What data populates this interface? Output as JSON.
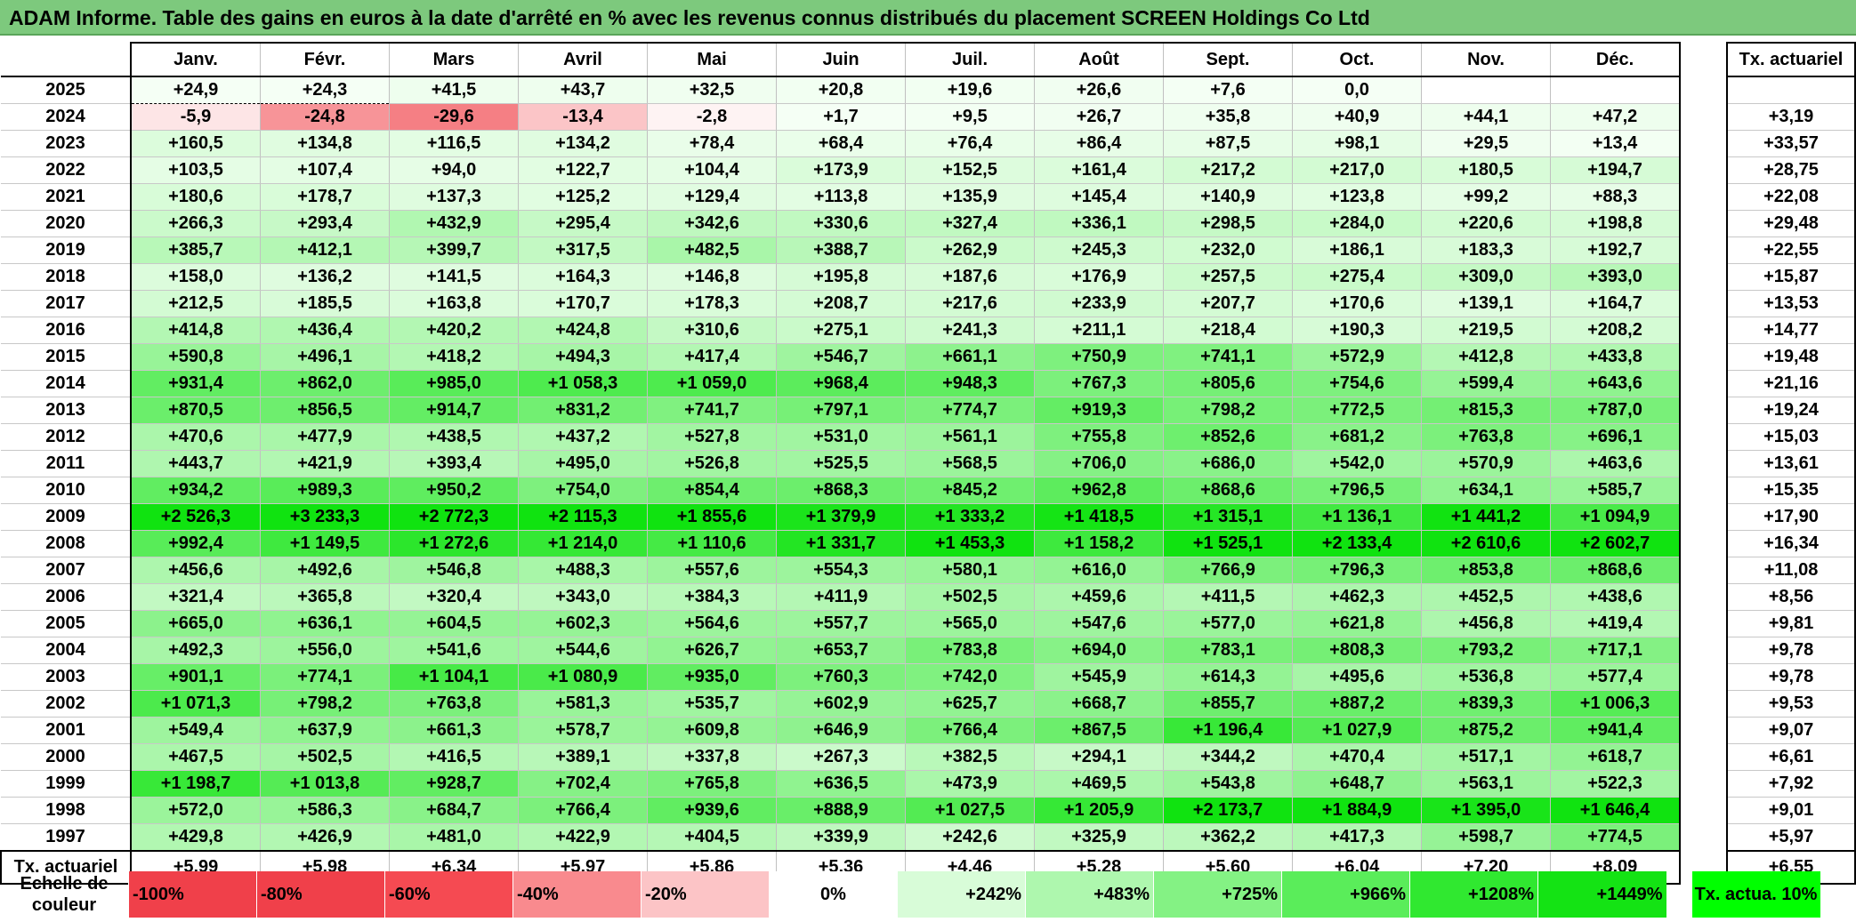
{
  "title": "ADAM Informe. Table des gains en euros à la date d'arrêté en % avec les revenus connus distribués du placement SCREEN Holdings Co Ltd",
  "chart_data": {
    "type": "table",
    "months": [
      "Janv.",
      "Févr.",
      "Mars",
      "Avril",
      "Mai",
      "Juin",
      "Juil.",
      "Août",
      "Sept.",
      "Oct.",
      "Nov.",
      "Déc."
    ],
    "right_header": "Tx. actuariel",
    "rows": [
      {
        "year": "2025",
        "values": [
          "+24,9",
          "+24,3",
          "+41,5",
          "+43,7",
          "+32,5",
          "+20,8",
          "+19,6",
          "+26,6",
          "+7,6",
          "0,0",
          "",
          ""
        ],
        "rate": ""
      },
      {
        "year": "2024",
        "values": [
          "-5,9",
          "-24,8",
          "-29,6",
          "-13,4",
          "-2,8",
          "+1,7",
          "+9,5",
          "+26,7",
          "+35,8",
          "+40,9",
          "+44,1",
          "+47,2"
        ],
        "rate": "+3,19"
      },
      {
        "year": "2023",
        "values": [
          "+160,5",
          "+134,8",
          "+116,5",
          "+134,2",
          "+78,4",
          "+68,4",
          "+76,4",
          "+86,4",
          "+87,5",
          "+98,1",
          "+29,5",
          "+13,4"
        ],
        "rate": "+33,57"
      },
      {
        "year": "2022",
        "values": [
          "+103,5",
          "+107,4",
          "+94,0",
          "+122,7",
          "+104,4",
          "+173,9",
          "+152,5",
          "+161,4",
          "+217,2",
          "+217,0",
          "+180,5",
          "+194,7"
        ],
        "rate": "+28,75"
      },
      {
        "year": "2021",
        "values": [
          "+180,6",
          "+178,7",
          "+137,3",
          "+125,2",
          "+129,4",
          "+113,8",
          "+135,9",
          "+145,4",
          "+140,9",
          "+123,8",
          "+99,2",
          "+88,3"
        ],
        "rate": "+22,08"
      },
      {
        "year": "2020",
        "values": [
          "+266,3",
          "+293,4",
          "+432,9",
          "+295,4",
          "+342,6",
          "+330,6",
          "+327,4",
          "+336,1",
          "+298,5",
          "+284,0",
          "+220,6",
          "+198,8"
        ],
        "rate": "+29,48"
      },
      {
        "year": "2019",
        "values": [
          "+385,7",
          "+412,1",
          "+399,7",
          "+317,5",
          "+482,5",
          "+388,7",
          "+262,9",
          "+245,3",
          "+232,0",
          "+186,1",
          "+183,3",
          "+192,7"
        ],
        "rate": "+22,55"
      },
      {
        "year": "2018",
        "values": [
          "+158,0",
          "+136,2",
          "+141,5",
          "+164,3",
          "+146,8",
          "+195,8",
          "+187,6",
          "+176,9",
          "+257,5",
          "+275,4",
          "+309,0",
          "+393,0"
        ],
        "rate": "+15,87"
      },
      {
        "year": "2017",
        "values": [
          "+212,5",
          "+185,5",
          "+163,8",
          "+170,7",
          "+178,3",
          "+208,7",
          "+217,6",
          "+233,9",
          "+207,7",
          "+170,6",
          "+139,1",
          "+164,7"
        ],
        "rate": "+13,53"
      },
      {
        "year": "2016",
        "values": [
          "+414,8",
          "+436,4",
          "+420,2",
          "+424,8",
          "+310,6",
          "+275,1",
          "+241,3",
          "+211,1",
          "+218,4",
          "+190,3",
          "+219,5",
          "+208,2"
        ],
        "rate": "+14,77"
      },
      {
        "year": "2015",
        "values": [
          "+590,8",
          "+496,1",
          "+418,2",
          "+494,3",
          "+417,4",
          "+546,7",
          "+661,1",
          "+750,9",
          "+741,1",
          "+572,9",
          "+412,8",
          "+433,8"
        ],
        "rate": "+19,48"
      },
      {
        "year": "2014",
        "values": [
          "+931,4",
          "+862,0",
          "+985,0",
          "+1 058,3",
          "+1 059,0",
          "+968,4",
          "+948,3",
          "+767,3",
          "+805,6",
          "+754,6",
          "+599,4",
          "+643,6"
        ],
        "rate": "+21,16"
      },
      {
        "year": "2013",
        "values": [
          "+870,5",
          "+856,5",
          "+914,7",
          "+831,2",
          "+741,7",
          "+797,1",
          "+774,7",
          "+919,3",
          "+798,2",
          "+772,5",
          "+815,3",
          "+787,0"
        ],
        "rate": "+19,24"
      },
      {
        "year": "2012",
        "values": [
          "+470,6",
          "+477,9",
          "+438,5",
          "+437,2",
          "+527,8",
          "+531,0",
          "+561,1",
          "+755,8",
          "+852,6",
          "+681,2",
          "+763,8",
          "+696,1"
        ],
        "rate": "+15,03"
      },
      {
        "year": "2011",
        "values": [
          "+443,7",
          "+421,9",
          "+393,4",
          "+495,0",
          "+526,8",
          "+525,5",
          "+568,5",
          "+706,0",
          "+686,0",
          "+542,0",
          "+570,9",
          "+463,6"
        ],
        "rate": "+13,61"
      },
      {
        "year": "2010",
        "values": [
          "+934,2",
          "+989,3",
          "+950,2",
          "+754,0",
          "+854,4",
          "+868,3",
          "+845,2",
          "+962,8",
          "+868,6",
          "+796,5",
          "+634,1",
          "+585,7"
        ],
        "rate": "+15,35"
      },
      {
        "year": "2009",
        "values": [
          "+2 526,3",
          "+3 233,3",
          "+2 772,3",
          "+2 115,3",
          "+1 855,6",
          "+1 379,9",
          "+1 333,2",
          "+1 418,5",
          "+1 315,1",
          "+1 136,1",
          "+1 441,2",
          "+1 094,9"
        ],
        "rate": "+17,90"
      },
      {
        "year": "2008",
        "values": [
          "+992,4",
          "+1 149,5",
          "+1 272,6",
          "+1 214,0",
          "+1 110,6",
          "+1 331,7",
          "+1 453,3",
          "+1 158,2",
          "+1 525,1",
          "+2 133,4",
          "+2 610,6",
          "+2 602,7"
        ],
        "rate": "+16,34"
      },
      {
        "year": "2007",
        "values": [
          "+456,6",
          "+492,6",
          "+546,8",
          "+488,3",
          "+557,6",
          "+554,3",
          "+580,1",
          "+616,0",
          "+766,9",
          "+796,3",
          "+853,8",
          "+868,6"
        ],
        "rate": "+11,08"
      },
      {
        "year": "2006",
        "values": [
          "+321,4",
          "+365,8",
          "+320,4",
          "+343,0",
          "+384,3",
          "+411,9",
          "+502,5",
          "+459,6",
          "+411,5",
          "+462,3",
          "+452,5",
          "+438,6"
        ],
        "rate": "+8,56"
      },
      {
        "year": "2005",
        "values": [
          "+665,0",
          "+636,1",
          "+604,5",
          "+602,3",
          "+564,6",
          "+557,7",
          "+565,0",
          "+547,6",
          "+577,0",
          "+621,8",
          "+456,8",
          "+419,4"
        ],
        "rate": "+9,81"
      },
      {
        "year": "2004",
        "values": [
          "+492,3",
          "+556,0",
          "+541,6",
          "+544,6",
          "+626,7",
          "+653,7",
          "+783,8",
          "+694,0",
          "+783,1",
          "+808,3",
          "+793,2",
          "+717,1"
        ],
        "rate": "+9,78"
      },
      {
        "year": "2003",
        "values": [
          "+901,1",
          "+774,1",
          "+1 104,1",
          "+1 080,9",
          "+935,0",
          "+760,3",
          "+742,0",
          "+545,9",
          "+614,3",
          "+495,6",
          "+536,8",
          "+577,4"
        ],
        "rate": "+9,78"
      },
      {
        "year": "2002",
        "values": [
          "+1 071,3",
          "+798,2",
          "+763,8",
          "+581,3",
          "+535,7",
          "+602,9",
          "+625,7",
          "+668,7",
          "+855,7",
          "+887,2",
          "+839,3",
          "+1 006,3"
        ],
        "rate": "+9,53"
      },
      {
        "year": "2001",
        "values": [
          "+549,4",
          "+637,9",
          "+661,3",
          "+578,7",
          "+609,8",
          "+646,9",
          "+766,4",
          "+867,5",
          "+1 196,4",
          "+1 027,9",
          "+875,2",
          "+941,4"
        ],
        "rate": "+9,07"
      },
      {
        "year": "2000",
        "values": [
          "+467,5",
          "+502,5",
          "+416,5",
          "+389,1",
          "+337,8",
          "+267,3",
          "+382,5",
          "+294,1",
          "+344,2",
          "+470,4",
          "+517,1",
          "+618,7"
        ],
        "rate": "+6,61"
      },
      {
        "year": "1999",
        "values": [
          "+1 198,7",
          "+1 013,8",
          "+928,7",
          "+702,4",
          "+765,8",
          "+636,5",
          "+473,9",
          "+469,5",
          "+543,8",
          "+648,7",
          "+563,1",
          "+522,3"
        ],
        "rate": "+7,92"
      },
      {
        "year": "1998",
        "values": [
          "+572,0",
          "+586,3",
          "+684,7",
          "+766,4",
          "+939,6",
          "+888,9",
          "+1 027,5",
          "+1 205,9",
          "+2 173,7",
          "+1 884,9",
          "+1 395,0",
          "+1 646,4"
        ],
        "rate": "+9,01"
      },
      {
        "year": "1997",
        "values": [
          "+429,8",
          "+426,9",
          "+481,0",
          "+422,9",
          "+404,5",
          "+339,9",
          "+242,6",
          "+325,9",
          "+362,2",
          "+417,3",
          "+598,7",
          "+774,5"
        ],
        "rate": "+5,97"
      }
    ],
    "footer": {
      "label": "Tx. actuariel",
      "values": [
        "+5,99",
        "+5,98",
        "+6,34",
        "+5,97",
        "+5,86",
        "+5,36",
        "+4,46",
        "+5,28",
        "+5,60",
        "+6,04",
        "+7,20",
        "+8,09"
      ],
      "rate": "+6,55"
    },
    "color_scale": {
      "label": "Echelle de couleur",
      "steps": [
        {
          "text": "-100%",
          "color": "#f0404a",
          "align": "left"
        },
        {
          "text": "-80%",
          "color": "#f0404a",
          "align": "left"
        },
        {
          "text": "-60%",
          "color": "#f54a52",
          "align": "left"
        },
        {
          "text": "-40%",
          "color": "#f98a8e",
          "align": "left"
        },
        {
          "text": "-20%",
          "color": "#fcc4c6",
          "align": "left"
        },
        {
          "text": "0%",
          "color": "#ffffff",
          "align": "center"
        },
        {
          "text": "+242%",
          "color": "#d8fcd8",
          "align": "right"
        },
        {
          "text": "+483%",
          "color": "#aef7ae",
          "align": "right"
        },
        {
          "text": "+725%",
          "color": "#84f284",
          "align": "right"
        },
        {
          "text": "+966%",
          "color": "#5aed5a",
          "align": "right"
        },
        {
          "text": "+1208%",
          "color": "#30e830",
          "align": "right"
        },
        {
          "text": "+1449%",
          "color": "#14e314",
          "align": "right"
        }
      ],
      "right_text": "Tx. actua. 10%",
      "right_color": "#00ff00"
    }
  }
}
